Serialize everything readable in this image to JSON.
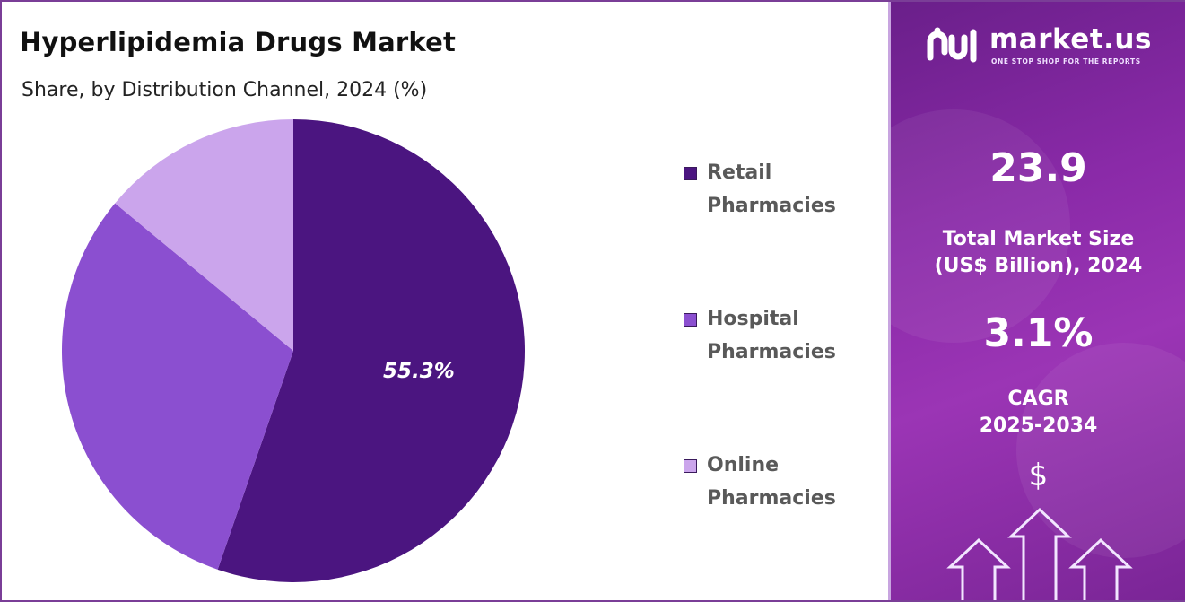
{
  "title": "Hyperlipidemia Drugs Market",
  "subtitle": "Share, by Distribution Channel, 2024 (%)",
  "chart_data": {
    "type": "pie",
    "title": "Hyperlipidemia Drugs Market",
    "subtitle": "Share, by Distribution Channel, 2024 (%)",
    "categories": [
      "Retail Pharmacies",
      "Hospital Pharmacies",
      "Online Pharmacies"
    ],
    "values": [
      55.3,
      30.7,
      14.0
    ],
    "colors": [
      "#4b1580",
      "#8b4fd0",
      "#cba5ec"
    ],
    "labels_shown": [
      "55.3%",
      "",
      ""
    ],
    "legend_position": "right"
  },
  "legend": [
    {
      "line1": "Retail",
      "line2": "Pharmacies",
      "color": "#4b1580"
    },
    {
      "line1": "Hospital",
      "line2": "Pharmacies",
      "color": "#8b4fd0"
    },
    {
      "line1": "Online",
      "line2": "Pharmacies",
      "color": "#cba5ec"
    }
  ],
  "brand": {
    "name": "market.us",
    "tagline": "ONE STOP SHOP FOR THE REPORTS",
    "logo_icon": "market-us-logo-icon"
  },
  "market_size": {
    "value": "23.9",
    "label_line1": "Total Market Size",
    "label_line2": "(US$ Billion), 2024"
  },
  "cagr": {
    "value": "3.1%",
    "label_line1": "CAGR",
    "label_line2": "2025-2034"
  },
  "dollar_symbol": "$",
  "colors": {
    "panel_start": "#6a1f8a",
    "panel_end": "#9b35b5",
    "border": "#7a3e97"
  }
}
